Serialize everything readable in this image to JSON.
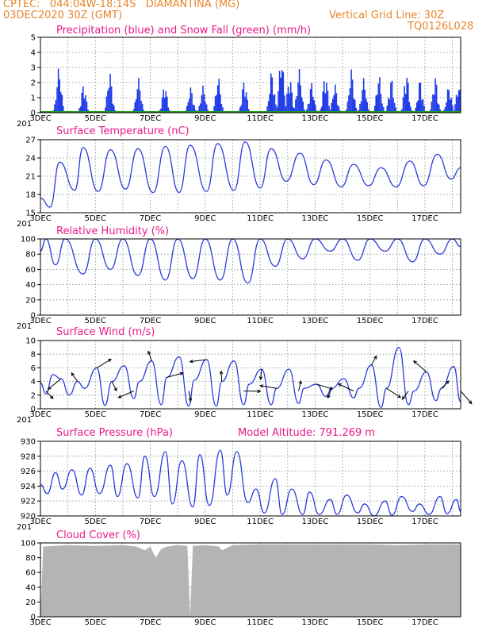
{
  "header": {
    "line1_left": "CPTEC:   044:04W-18:14S   DIAMANTINA (MG)",
    "line2_left": "03DEC2020 30Z (GMT)",
    "line2_right": "Vertical Grid Line: 30Z",
    "line3_right": "TQ0126L028",
    "color": "#e8862a"
  },
  "x_axis": {
    "tick_labels": [
      "3DEC",
      "5DEC",
      "7DEC",
      "9DEC",
      "11DEC",
      "13DEC",
      "15DEC",
      "17DEC"
    ],
    "overlap_label": "201",
    "day_start": 3,
    "day_end": 18.3
  },
  "colors": {
    "line": "#2b3bdc",
    "precip": "#1f3ce8",
    "snow": "#1a9a1a",
    "cloud": "#b4b4b4",
    "title": "#e8198a",
    "grid": "#888888"
  },
  "chart_data": [
    {
      "type": "bar",
      "id": "precip",
      "title": "Precipitation (blue) and Snow Fall (green) (mm/h)",
      "ylim": [
        0,
        5
      ],
      "yticks": [
        "0",
        "1",
        "2",
        "3",
        "4",
        "5"
      ],
      "series": [
        {
          "name": "Precipitation (blue)",
          "peaks": [
            [
              3.65,
              3.0
            ],
            [
              4.55,
              1.9
            ],
            [
              5.5,
              2.7
            ],
            [
              6.55,
              2.3
            ],
            [
              7.5,
              1.9
            ],
            [
              8.45,
              1.7
            ],
            [
              8.9,
              1.8
            ],
            [
              9.45,
              2.4
            ],
            [
              10.4,
              2.2
            ],
            [
              11.4,
              2.8
            ],
            [
              11.75,
              3.8
            ],
            [
              12.05,
              2.4
            ],
            [
              12.4,
              2.9
            ],
            [
              12.85,
              2.0
            ],
            [
              13.35,
              2.6
            ],
            [
              13.7,
              1.9
            ],
            [
              14.3,
              2.9
            ],
            [
              14.75,
              2.3
            ],
            [
              15.3,
              2.5
            ],
            [
              15.75,
              2.3
            ],
            [
              16.3,
              2.7
            ],
            [
              16.8,
              2.2
            ],
            [
              17.35,
              2.4
            ],
            [
              17.85,
              1.8
            ],
            [
              18.2,
              1.9
            ]
          ]
        },
        {
          "name": "Snow Fall (green)",
          "values": [
            0
          ]
        }
      ]
    },
    {
      "type": "line",
      "id": "temperature",
      "title": "Surface Temperature (nC)",
      "ylim": [
        15,
        28
      ],
      "yticks": [
        "15",
        "18",
        "21",
        "24",
        "27"
      ],
      "x": [
        3.0,
        3.35,
        3.7,
        4.25,
        4.55,
        5.1,
        5.55,
        6.1,
        6.55,
        7.1,
        7.55,
        8.05,
        8.45,
        9.05,
        9.45,
        10.05,
        10.45,
        11.0,
        11.4,
        11.95,
        12.45,
        12.95,
        13.4,
        13.95,
        14.4,
        14.95,
        15.4,
        15.95,
        16.45,
        16.95,
        17.45,
        17.95,
        18.3
      ],
      "values": [
        17.6,
        16.0,
        24.0,
        19.0,
        26.6,
        18.8,
        26.2,
        19.2,
        26.4,
        18.6,
        26.8,
        18.6,
        27.0,
        18.8,
        27.3,
        19.0,
        27.6,
        19.4,
        26.4,
        20.6,
        25.6,
        20.0,
        24.4,
        19.6,
        23.6,
        19.8,
        23.0,
        19.6,
        24.2,
        19.8,
        25.4,
        21.0,
        23.0
      ]
    },
    {
      "type": "line",
      "id": "humidity",
      "title": "Relative Humidity (%)",
      "ylim": [
        0,
        100
      ],
      "yticks": [
        "0",
        "20",
        "40",
        "60",
        "80",
        "100"
      ],
      "x": [
        3.0,
        3.2,
        3.55,
        3.9,
        4.55,
        5.0,
        5.55,
        6.0,
        6.55,
        7.0,
        7.55,
        8.0,
        8.55,
        9.0,
        9.55,
        10.0,
        10.55,
        11.0,
        11.55,
        12.0,
        12.55,
        13.0,
        13.55,
        14.0,
        14.55,
        15.0,
        15.55,
        16.0,
        16.55,
        17.0,
        17.55,
        18.0,
        18.3
      ],
      "values": [
        84,
        100,
        66,
        100,
        54,
        100,
        60,
        100,
        52,
        100,
        46,
        100,
        48,
        100,
        46,
        100,
        42,
        100,
        64,
        100,
        74,
        100,
        84,
        100,
        72,
        100,
        84,
        100,
        70,
        100,
        80,
        100,
        90
      ]
    },
    {
      "type": "line",
      "id": "wind",
      "title": "Surface Wind (m/s)",
      "ylim": [
        0,
        10
      ],
      "yticks": [
        "0",
        "2",
        "4",
        "6",
        "8",
        "10"
      ],
      "x": [
        3.0,
        3.2,
        3.45,
        3.75,
        4.05,
        4.35,
        4.6,
        5.05,
        5.35,
        5.6,
        6.05,
        6.4,
        6.6,
        7.05,
        7.4,
        7.6,
        8.05,
        8.4,
        8.6,
        9.05,
        9.4,
        9.6,
        10.05,
        10.4,
        10.6,
        11.05,
        11.4,
        11.6,
        12.05,
        12.4,
        12.6,
        13.05,
        13.4,
        13.6,
        14.05,
        14.4,
        14.6,
        15.05,
        15.4,
        15.6,
        16.05,
        16.4,
        16.6,
        17.05,
        17.4,
        17.6,
        18.05,
        18.3
      ],
      "values": [
        3.8,
        2.2,
        5.0,
        4.4,
        2.0,
        4.0,
        3.0,
        6.0,
        0.5,
        4.0,
        6.3,
        1.5,
        4.0,
        7.0,
        0.6,
        4.6,
        7.6,
        0.4,
        4.2,
        7.2,
        0.4,
        4.0,
        7.0,
        0.6,
        3.6,
        5.8,
        0.6,
        3.0,
        5.8,
        0.8,
        3.0,
        3.6,
        1.8,
        3.0,
        4.4,
        1.6,
        3.0,
        6.4,
        0.2,
        3.0,
        9.0,
        0.6,
        2.6,
        5.4,
        1.2,
        3.0,
        6.2,
        1.0
      ]
    },
    {
      "type": "line",
      "id": "pressure",
      "title": "Surface Pressure (hPa)",
      "annotation": "Model Altitude: 791.269  m",
      "ylim": [
        920,
        930
      ],
      "yticks": [
        "920",
        "922",
        "924",
        "926",
        "928",
        "930"
      ],
      "x": [
        3.0,
        3.25,
        3.55,
        3.8,
        4.15,
        4.5,
        4.8,
        5.15,
        5.55,
        5.8,
        6.15,
        6.55,
        6.8,
        7.15,
        7.55,
        7.8,
        8.15,
        8.55,
        8.8,
        9.15,
        9.55,
        9.8,
        10.15,
        10.55,
        10.85,
        11.15,
        11.55,
        11.8,
        12.15,
        12.55,
        12.8,
        13.15,
        13.55,
        13.8,
        14.15,
        14.55,
        14.8,
        15.15,
        15.55,
        15.8,
        16.15,
        16.55,
        16.8,
        17.15,
        17.55,
        17.8,
        18.15,
        18.3
      ],
      "values": [
        924.2,
        923.0,
        925.8,
        923.6,
        926.2,
        922.8,
        926.4,
        923.0,
        926.8,
        922.6,
        927.0,
        922.4,
        928.0,
        922.6,
        928.6,
        921.6,
        927.4,
        921.2,
        928.2,
        921.4,
        928.8,
        922.8,
        928.6,
        921.8,
        923.6,
        920.4,
        925.0,
        920.2,
        923.6,
        920.2,
        923.2,
        920.2,
        922.2,
        920.2,
        922.8,
        920.4,
        921.6,
        920.0,
        922.0,
        920.1,
        922.6,
        920.6,
        921.6,
        920.2,
        922.6,
        920.3,
        922.2,
        920.6
      ]
    },
    {
      "type": "area",
      "id": "cloud",
      "title": "Cloud Cover (%)",
      "ylim": [
        0,
        100
      ],
      "yticks": [
        "0",
        "20",
        "40",
        "60",
        "80",
        "100"
      ],
      "x": [
        3.0,
        3.1,
        4.0,
        5.0,
        6.0,
        6.5,
        6.8,
        7.0,
        7.2,
        7.4,
        7.6,
        8.0,
        8.35,
        8.45,
        8.55,
        9.0,
        9.5,
        9.6,
        10.0,
        11.0,
        12.0,
        13.0,
        14.0,
        15.0,
        16.0,
        17.0,
        18.0,
        18.3
      ],
      "values": [
        0,
        95,
        97,
        96,
        97,
        95,
        90,
        95,
        80,
        92,
        95,
        97,
        96,
        2,
        96,
        97,
        95,
        90,
        97,
        98,
        98,
        98,
        98,
        98,
        97,
        98,
        98,
        98
      ]
    }
  ]
}
